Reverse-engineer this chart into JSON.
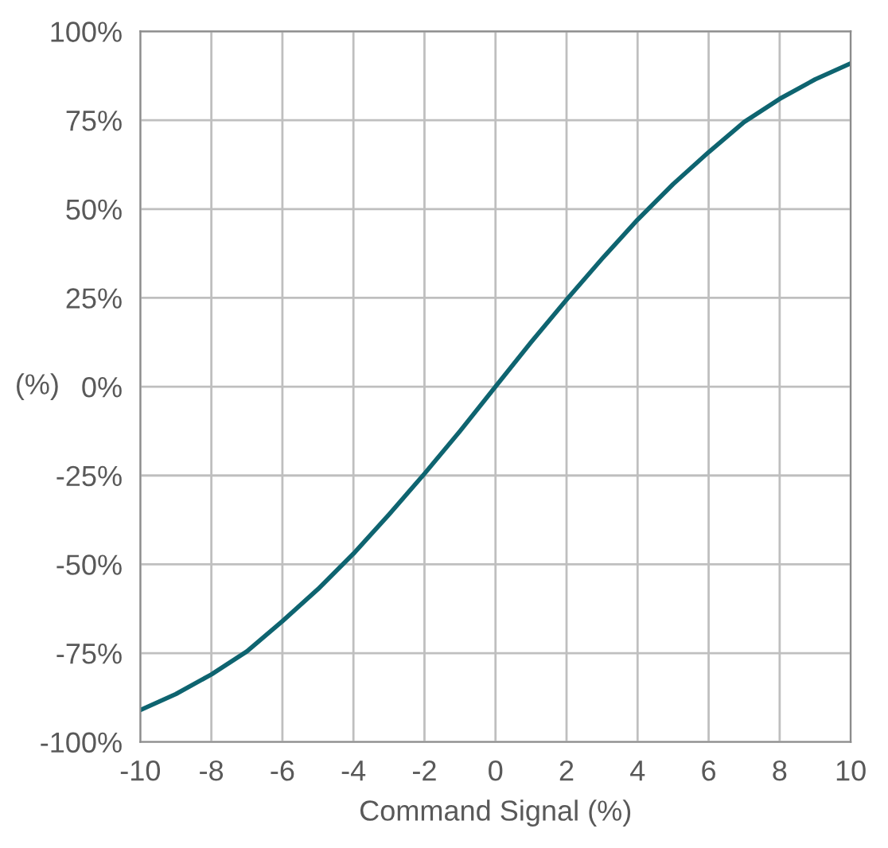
{
  "chart_data": {
    "type": "line",
    "xlabel": "Command Signal (%)",
    "ylabel": "(%)",
    "x": [
      -10,
      -9,
      -8,
      -7,
      -6,
      -5,
      -4,
      -3,
      -2,
      -1,
      0,
      1,
      2,
      3,
      4,
      5,
      6,
      7,
      8,
      9,
      10
    ],
    "series": [
      {
        "color": "#0e6470",
        "values": [
          -91,
          -86.5,
          -81,
          -74.5,
          -66,
          -57,
          -47,
          -36,
          -24.5,
          -12.5,
          0,
          12.5,
          24.5,
          36,
          47,
          57,
          66,
          74.5,
          81,
          86.5,
          91
        ]
      }
    ],
    "xlim": [
      -10,
      10
    ],
    "xticks": [
      -10,
      -8,
      -6,
      -4,
      -2,
      0,
      2,
      4,
      6,
      8,
      10
    ],
    "ylim": [
      -100,
      100
    ],
    "yticks": [
      {
        "value": -100,
        "label": "-100%"
      },
      {
        "value": -75,
        "label": "-75%"
      },
      {
        "value": -50,
        "label": "-50%"
      },
      {
        "value": -25,
        "label": "-25%"
      },
      {
        "value": 0,
        "label": "0%"
      },
      {
        "value": 25,
        "label": "25%"
      },
      {
        "value": 50,
        "label": "50%"
      },
      {
        "value": 75,
        "label": "75%"
      },
      {
        "value": 100,
        "label": "100%"
      }
    ],
    "grid": true,
    "legend": false,
    "marker": "none",
    "line_style": "solid"
  }
}
